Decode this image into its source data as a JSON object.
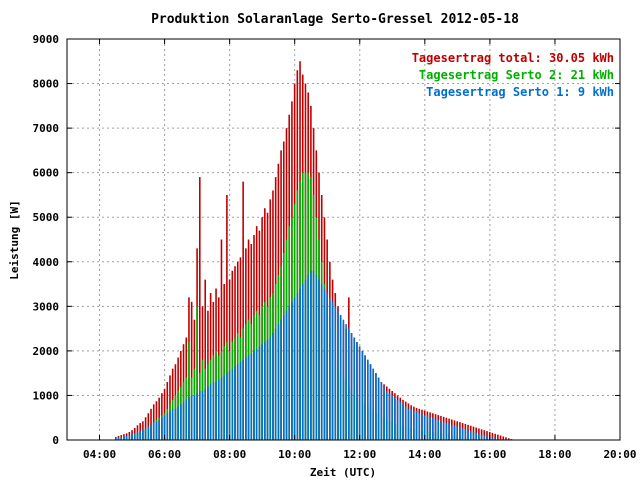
{
  "chart_data": {
    "type": "bar",
    "title": "Produktion Solaranlage Serto-Gressel 2012-05-18",
    "xlabel": "Zeit (UTC)",
    "ylabel": "Leistung [W]",
    "x_range_hours": [
      3,
      20
    ],
    "ylim": [
      0,
      9000
    ],
    "y_ticks": [
      "0",
      "1000",
      "2000",
      "3000",
      "4000",
      "5000",
      "6000",
      "7000",
      "8000",
      "9000"
    ],
    "x_ticks": [
      {
        "hour": 4,
        "label": "04:00"
      },
      {
        "hour": 6,
        "label": "06:00"
      },
      {
        "hour": 8,
        "label": "08:00"
      },
      {
        "hour": 10,
        "label": "10:00"
      },
      {
        "hour": 12,
        "label": "12:00"
      },
      {
        "hour": 14,
        "label": "14:00"
      },
      {
        "hour": 16,
        "label": "16:00"
      },
      {
        "hour": 18,
        "label": "18:00"
      },
      {
        "hour": 20,
        "label": "20:00"
      }
    ],
    "grid": true,
    "legend_position": "top-right",
    "stacked": true,
    "series": [
      {
        "name": "Tagesertrag total: 30.05 kWh",
        "color": "#c00000",
        "role": "total"
      },
      {
        "name": "Tagesertrag Serto 2: 21 kWh",
        "color": "#00b000",
        "role": "serto2"
      },
      {
        "name": "Tagesertrag Serto 1: 9 kWh",
        "color": "#0070d0",
        "role": "serto1"
      }
    ],
    "x_start_hour": 4.5,
    "x_step_hours": 0.0833,
    "serto1_values": [
      50,
      60,
      70,
      80,
      90,
      100,
      120,
      150,
      180,
      200,
      220,
      260,
      300,
      350,
      400,
      420,
      450,
      500,
      550,
      600,
      650,
      700,
      700,
      750,
      800,
      850,
      900,
      950,
      1000,
      1000,
      1050,
      1100,
      1100,
      1150,
      1200,
      1250,
      1300,
      1300,
      1350,
      1400,
      1450,
      1500,
      1550,
      1600,
      1650,
      1700,
      1750,
      1800,
      1850,
      1900,
      1950,
      2000,
      2050,
      2100,
      2150,
      2200,
      2250,
      2300,
      2400,
      2500,
      2600,
      2700,
      2800,
      2900,
      3000,
      3100,
      3200,
      3300,
      3400,
      3500,
      3600,
      3700,
      3800,
      3800,
      3700,
      3600,
      3500,
      3400,
      3300,
      3200,
      3100,
      3000,
      2900,
      2800,
      2700,
      2600,
      2500,
      2400,
      2300,
      2200,
      2100,
      2000,
      1900,
      1800,
      1700,
      1600,
      1500,
      1400,
      1300,
      1200,
      1100,
      1050,
      1000,
      950,
      900,
      850,
      800,
      750,
      700,
      700,
      650,
      650,
      600,
      600,
      550,
      550,
      500,
      500,
      450,
      450,
      400,
      400,
      380,
      360,
      340,
      320,
      300,
      280,
      260,
      240,
      220,
      200,
      180,
      160,
      140,
      120,
      100,
      80,
      60,
      50,
      40,
      30,
      20,
      15,
      10,
      8,
      5
    ],
    "serto2_values": [
      20,
      30,
      40,
      50,
      60,
      80,
      100,
      120,
      150,
      180,
      200,
      250,
      300,
      350,
      400,
      450,
      500,
      550,
      600,
      700,
      800,
      900,
      1000,
      1100,
      1200,
      1300,
      1400,
      2200,
      1400,
      1600,
      3000,
      1500,
      1800,
      1600,
      1700,
      1800,
      1900,
      2000,
      1900,
      2000,
      2100,
      2200,
      2000,
      2200,
      2300,
      2400,
      2300,
      2500,
      2600,
      2700,
      2600,
      2800,
      2900,
      2800,
      3000,
      3100,
      3000,
      3200,
      3300,
      3500,
      3700,
      3900,
      4200,
      4500,
      4800,
      5000,
      5300,
      5600,
      5800,
      6000,
      6000,
      6000,
      5900,
      5500,
      5000,
      4500,
      4000,
      3500,
      3000,
      2500,
      2000,
      1800,
      1600,
      1500,
      1400,
      1300,
      1200,
      1100,
      1000,
      950,
      900,
      850,
      800,
      750,
      700,
      650,
      600,
      560,
      520,
      480,
      450,
      420,
      400,
      380,
      360,
      340,
      320,
      300,
      280,
      260,
      250,
      240,
      230,
      220,
      210,
      200,
      190,
      180,
      170,
      160,
      150,
      140,
      130,
      120,
      110,
      100,
      90,
      80,
      70,
      60,
      50,
      45,
      40,
      35,
      30,
      25,
      20,
      15,
      10,
      8,
      6,
      5,
      4,
      3,
      2,
      1,
      1,
      1,
      0
    ],
    "total_values": [
      70,
      90,
      110,
      130,
      150,
      180,
      220,
      270,
      330,
      380,
      420,
      510,
      600,
      700,
      800,
      870,
      950,
      1050,
      1150,
      1300,
      1450,
      1600,
      1700,
      1850,
      2000,
      2150,
      2300,
      3200,
      3100,
      2700,
      4300,
      5900,
      3000,
      3600,
      2900,
      3300,
      3100,
      3400,
      3200,
      4500,
      3500,
      5500,
      3600,
      3800,
      3900,
      4000,
      4100,
      5800,
      4300,
      4500,
      4400,
      4600,
      4800,
      4700,
      5000,
      5200,
      5100,
      5400,
      5600,
      5900,
      6200,
      6500,
      6700,
      7000,
      7300,
      7600,
      8000,
      8300,
      8500,
      8200,
      8000,
      7800,
      7500,
      7000,
      6500,
      6000,
      5500,
      5000,
      4500,
      4000,
      3600,
      3300,
      3000,
      2800,
      2600,
      2500,
      3200,
      2400,
      2300,
      2200,
      2100,
      2000,
      1900,
      1800,
      1700,
      1600,
      1500,
      1400,
      1300,
      1250,
      1200,
      1150,
      1100,
      1050,
      1000,
      950,
      900,
      860,
      820,
      780,
      750,
      720,
      700,
      680,
      660,
      640,
      620,
      600,
      580,
      560,
      540,
      520,
      500,
      480,
      460,
      440,
      420,
      400,
      380,
      360,
      340,
      320,
      300,
      280,
      260,
      240,
      220,
      200,
      180,
      160,
      140,
      120,
      100,
      80,
      60,
      40,
      20,
      10,
      5
    ]
  }
}
